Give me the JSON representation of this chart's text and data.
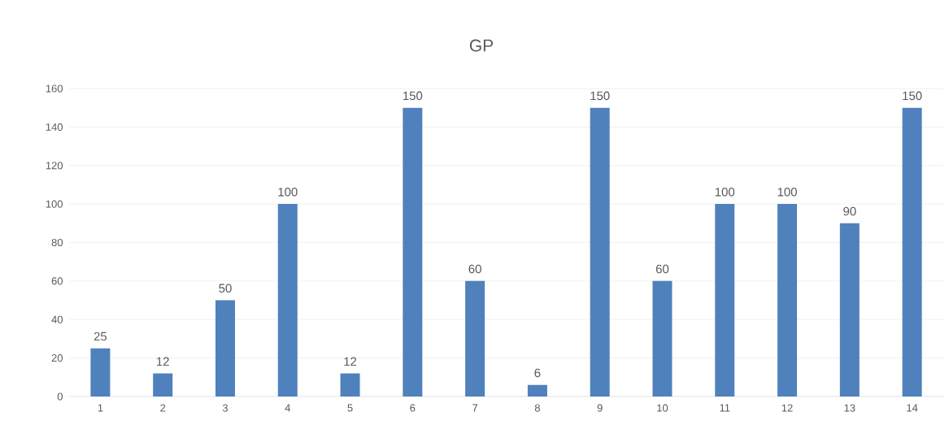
{
  "chart_data": {
    "type": "bar",
    "title": "GP",
    "categories": [
      "1",
      "2",
      "3",
      "4",
      "5",
      "6",
      "7",
      "8",
      "9",
      "10",
      "11",
      "12",
      "13",
      "14"
    ],
    "values": [
      25,
      12,
      50,
      100,
      12,
      150,
      60,
      6,
      150,
      60,
      100,
      100,
      90,
      150
    ],
    "color": "#4f81bd",
    "ylim": [
      0,
      160
    ],
    "yticks": [
      0,
      20,
      40,
      60,
      80,
      100,
      120,
      140,
      160
    ],
    "grid": "y",
    "data_labels": true
  }
}
